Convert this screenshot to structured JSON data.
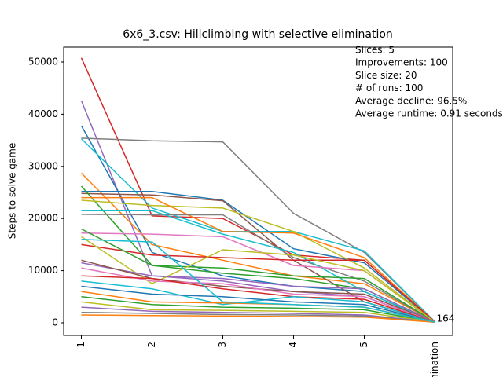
{
  "chart_data": {
    "type": "line",
    "title": "6x6_3.csv: Hillclimbing with selective elimination",
    "y_label": "Steps to solve game",
    "categories": [
      "1",
      "2",
      "3",
      "4",
      "5",
      "elimination"
    ],
    "ylim": [
      -2410,
      52860
    ],
    "yticks": [
      0,
      10000,
      20000,
      30000,
      40000,
      50000
    ],
    "annotations": [
      "Slices: 5",
      "Improvements: 100",
      "Slice size: 20",
      "# of runs: 100",
      "Average decline: 96.5%",
      "Average runtime: 0.91 seconds"
    ],
    "end_label": {
      "value": 164,
      "label": "164"
    },
    "series": [
      {
        "color": "#d62728",
        "values": [
          50800,
          20500,
          20000,
          13000,
          12000,
          164
        ]
      },
      {
        "color": "#9467bd",
        "values": [
          42600,
          9000,
          8000,
          6000,
          5000,
          200
        ]
      },
      {
        "color": "#1f77b4",
        "values": [
          37800,
          13500,
          9000,
          7000,
          6000,
          150
        ]
      },
      {
        "color": "#7f7f7f",
        "values": [
          35400,
          34900,
          34700,
          21000,
          13500,
          200
        ]
      },
      {
        "color": "#17becf",
        "values": [
          35300,
          22000,
          17500,
          17500,
          13800,
          180
        ]
      },
      {
        "color": "#ff7f0e",
        "values": [
          28700,
          15000,
          12000,
          9000,
          7500,
          170
        ]
      },
      {
        "color": "#1f77b4",
        "values": [
          25200,
          25200,
          23500,
          14200,
          11500,
          160
        ]
      },
      {
        "color": "#8c564b",
        "values": [
          24800,
          24500,
          23400,
          12000,
          4000,
          150
        ]
      },
      {
        "color": "#2ca02c",
        "values": [
          26200,
          11000,
          9500,
          8500,
          6500,
          140
        ]
      },
      {
        "color": "#bcbd22",
        "values": [
          23500,
          22500,
          22000,
          17500,
          10500,
          190
        ]
      },
      {
        "color": "#ff7f0e",
        "values": [
          24000,
          24000,
          17500,
          17200,
          12500,
          170
        ]
      },
      {
        "color": "#7f7f7f",
        "values": [
          20800,
          20700,
          20700,
          12500,
          8000,
          160
        ]
      },
      {
        "color": "#17becf",
        "values": [
          21500,
          21500,
          17000,
          13500,
          6000,
          150
        ]
      },
      {
        "color": "#e377c2",
        "values": [
          17200,
          17000,
          16500,
          11000,
          10000,
          170
        ]
      },
      {
        "color": "#d62728",
        "values": [
          15000,
          13000,
          12500,
          12000,
          12000,
          180
        ]
      },
      {
        "color": "#2ca02c",
        "values": [
          18000,
          11000,
          10500,
          9000,
          8500,
          160
        ]
      },
      {
        "color": "#bcbd22",
        "values": [
          16500,
          7500,
          14000,
          13000,
          10000,
          150
        ]
      },
      {
        "color": "#9467bd",
        "values": [
          11500,
          9000,
          8500,
          7000,
          6500,
          140
        ]
      },
      {
        "color": "#8c564b",
        "values": [
          12000,
          8500,
          7000,
          6000,
          5500,
          150
        ]
      },
      {
        "color": "#e377c2",
        "values": [
          10500,
          8000,
          7500,
          5500,
          5000,
          160
        ]
      },
      {
        "color": "#d62728",
        "values": [
          9000,
          8500,
          6500,
          5000,
          4500,
          150
        ]
      },
      {
        "color": "#17becf",
        "values": [
          8000,
          6500,
          3500,
          5000,
          4000,
          140
        ]
      },
      {
        "color": "#1f77b4",
        "values": [
          7000,
          5500,
          5000,
          4000,
          3500,
          130
        ]
      },
      {
        "color": "#ff7f0e",
        "values": [
          6000,
          4000,
          3800,
          3500,
          3000,
          150
        ]
      },
      {
        "color": "#2ca02c",
        "values": [
          5000,
          3500,
          3000,
          2800,
          2500,
          140
        ]
      },
      {
        "color": "#bcbd22",
        "values": [
          4000,
          2500,
          2400,
          2200,
          2000,
          130
        ]
      },
      {
        "color": "#9467bd",
        "values": [
          3000,
          2200,
          2000,
          1800,
          1500,
          120
        ]
      },
      {
        "color": "#7f7f7f",
        "values": [
          2000,
          1800,
          1600,
          1500,
          1300,
          120
        ]
      },
      {
        "color": "#ff7f0e",
        "values": [
          1500,
          1400,
          1300,
          1200,
          1100,
          110
        ]
      },
      {
        "color": "#17becf",
        "values": [
          16000,
          15500,
          4000,
          3500,
          3000,
          140
        ]
      }
    ]
  }
}
